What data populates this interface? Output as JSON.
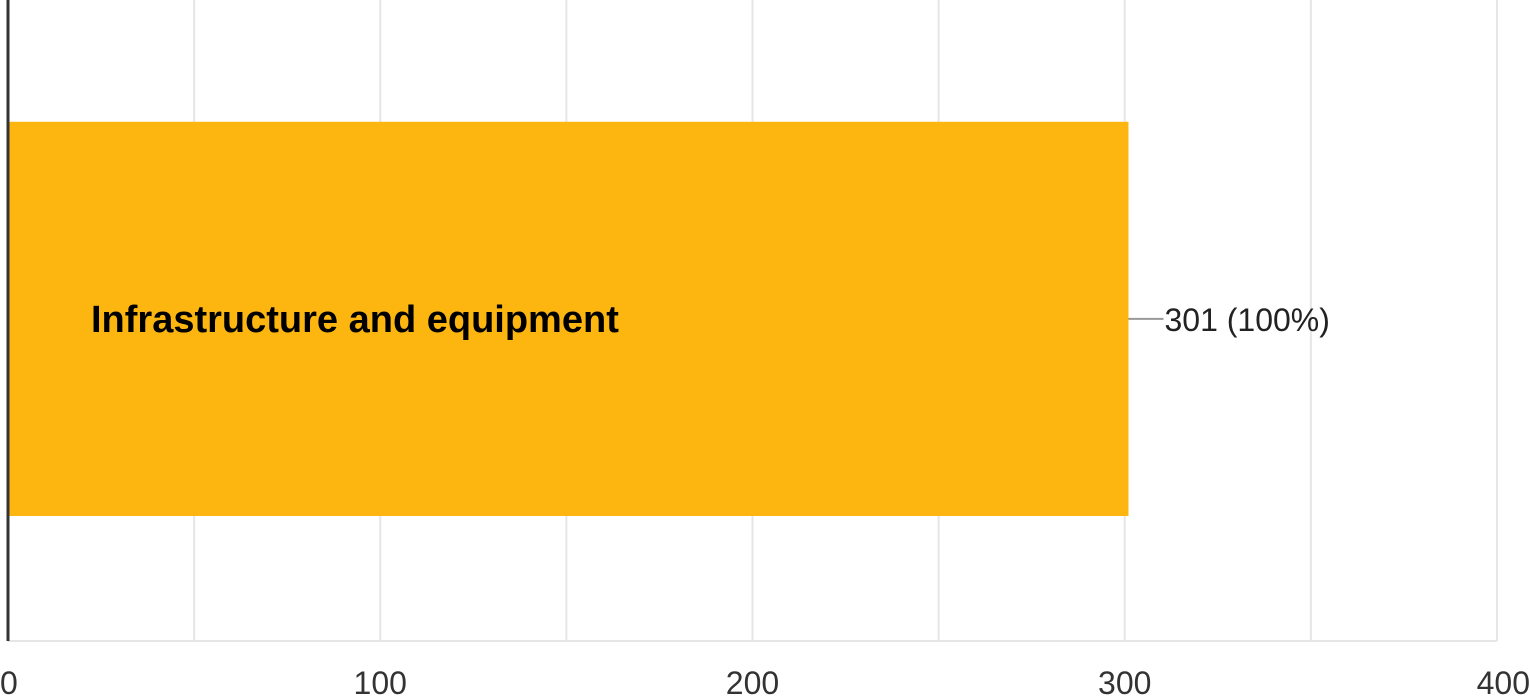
{
  "chart_data": {
    "type": "bar",
    "orientation": "horizontal",
    "categories": [
      "Infrastructure and equipment"
    ],
    "values": [
      301
    ],
    "data_labels": [
      "301 (100%)"
    ],
    "x_ticks": [
      "0",
      "100",
      "200",
      "300",
      "400"
    ],
    "xlim": [
      0,
      400
    ],
    "grid": true,
    "legend": "none",
    "bar_color": "#FDB50F",
    "gridline_color": "#E6E6E6",
    "axis_color": "#333333"
  }
}
